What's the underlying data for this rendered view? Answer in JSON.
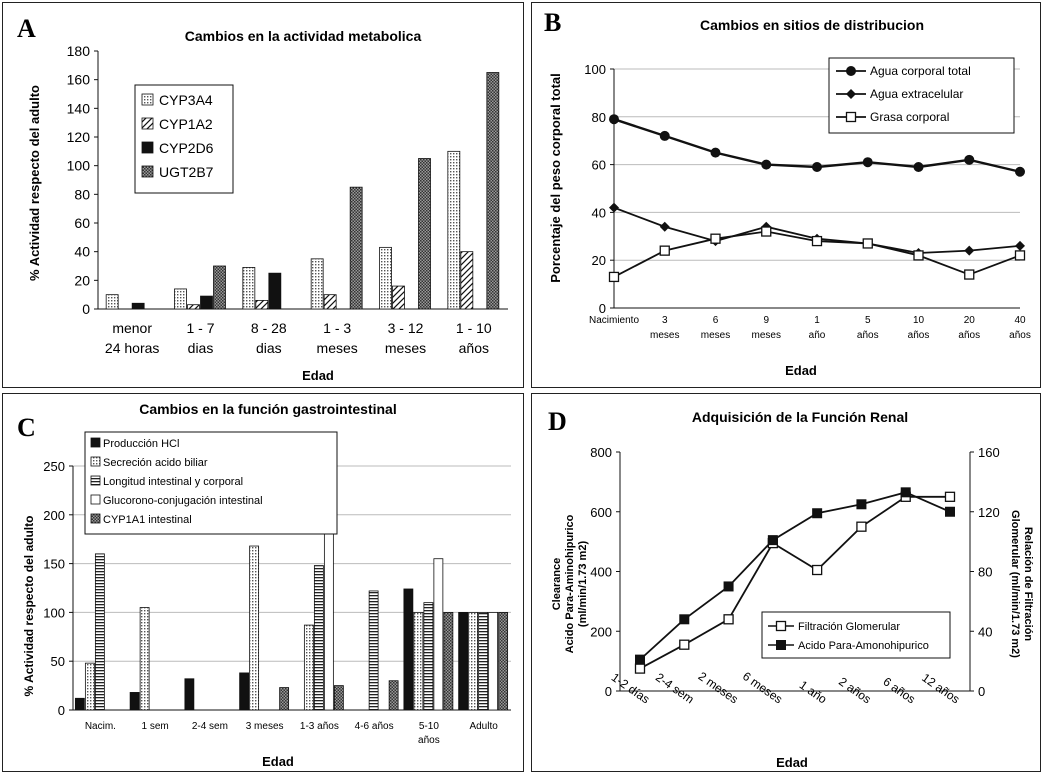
{
  "chart_data": [
    {
      "panel_letter": "A",
      "type": "bar",
      "title": "Cambios en la actividad metabolica",
      "xlabel": "Edad",
      "ylabel": "% Actividad respecto del adulto",
      "ylim": [
        0,
        180
      ],
      "yticks": [
        "0",
        "20",
        "40",
        "60",
        "80",
        "100",
        "120",
        "140",
        "160",
        "180"
      ],
      "categories": [
        [
          "menor",
          "24 horas"
        ],
        [
          "1 - 7",
          "dias"
        ],
        [
          "8 - 28",
          "dias"
        ],
        [
          "1 - 3",
          "meses"
        ],
        [
          "3 - 12",
          "meses"
        ],
        [
          "1 - 10",
          "años"
        ]
      ],
      "series": [
        {
          "name": "CYP3A4",
          "pattern": "dots",
          "values": [
            10,
            14,
            29,
            35,
            43,
            110
          ]
        },
        {
          "name": "CYP1A2",
          "pattern": "diag",
          "values": [
            0,
            3,
            6,
            10,
            16,
            40
          ]
        },
        {
          "name": "CYP2D6",
          "pattern": "solid",
          "values": [
            4,
            9,
            25,
            0,
            0,
            0
          ]
        },
        {
          "name": "UGT2B7",
          "pattern": "dense",
          "values": [
            0,
            30,
            0,
            85,
            105,
            165
          ]
        }
      ],
      "legend": "top-left",
      "grid": false
    },
    {
      "panel_letter": "B",
      "type": "line",
      "title": "Cambios en sitios de distribucion",
      "xlabel": "Edad",
      "ylabel": "Porcentaje del peso corporal total",
      "ylim": [
        0,
        100
      ],
      "yticks": [
        "0",
        "20",
        "40",
        "60",
        "80",
        "100"
      ],
      "categories": [
        [
          "Nacimiento"
        ],
        [
          "3",
          "meses"
        ],
        [
          "6",
          "meses"
        ],
        [
          "9",
          "meses"
        ],
        [
          "1",
          "año"
        ],
        [
          "5",
          "años"
        ],
        [
          "10",
          "años"
        ],
        [
          "20",
          "años"
        ],
        [
          "40",
          "años"
        ]
      ],
      "series": [
        {
          "name": "Agua corporal total",
          "marker": "circle",
          "values": [
            79,
            72,
            65,
            60,
            59,
            61,
            59,
            62,
            57
          ]
        },
        {
          "name": "Agua extracelular",
          "marker": "diamond",
          "values": [
            42,
            34,
            28,
            34,
            29,
            27,
            23,
            24,
            26
          ]
        },
        {
          "name": "Grasa corporal",
          "marker": "square-open",
          "values": [
            13,
            24,
            29,
            32,
            28,
            27,
            22,
            14,
            22
          ]
        }
      ],
      "legend": "top-right",
      "grid": true
    },
    {
      "panel_letter": "C",
      "type": "bar",
      "title": "Cambios en la función gastrointestinal",
      "xlabel": "Edad",
      "ylabel": "% Actividad respecto del adulto",
      "ylim": [
        0,
        250
      ],
      "yticks": [
        "0",
        "50",
        "100",
        "150",
        "200",
        "250"
      ],
      "categories": [
        [
          "Nacim."
        ],
        [
          "1 sem"
        ],
        [
          "2-4 sem"
        ],
        [
          "3 meses"
        ],
        [
          "1-3 años"
        ],
        [
          "4-6 años"
        ],
        [
          "5-10",
          "años"
        ],
        [
          "Adulto"
        ]
      ],
      "series": [
        {
          "name": "Producción HCl",
          "pattern": "solid",
          "values": [
            12,
            18,
            32,
            38,
            0,
            0,
            124,
            100
          ]
        },
        {
          "name": "Secreción acido biliar",
          "pattern": "dots",
          "values": [
            48,
            105,
            0,
            168,
            87,
            0,
            100,
            100
          ]
        },
        {
          "name": "Longitud intestinal y corporal",
          "pattern": "hlines",
          "values": [
            160,
            0,
            0,
            0,
            148,
            122,
            110,
            100
          ]
        },
        {
          "name": "Glucorono-conjugación intestinal",
          "pattern": "open",
          "values": [
            0,
            0,
            0,
            0,
            238,
            0,
            155,
            100
          ]
        },
        {
          "name": "CYP1A1 intestinal",
          "pattern": "dense",
          "values": [
            0,
            0,
            0,
            23,
            25,
            30,
            100,
            100
          ]
        }
      ],
      "legend": "top-left",
      "grid": true
    },
    {
      "panel_letter": "D",
      "type": "line",
      "title": "Adquisición de la Función Renal",
      "xlabel": "Edad",
      "ylabel": "Clearance Acido Para-Aminohipurico (ml/min/1.73 m2)",
      "ylabel_lines": [
        "Clearance",
        "Acido Para-Aminohipurico",
        "(ml/min/1.73 m2)"
      ],
      "y2label": "Relación de Filtración Glomerular (ml/min/1.73 m2)",
      "y2label_lines": [
        "Relación de Filtración",
        "Glomerular (ml/min/1.73 m2)"
      ],
      "ylim": [
        0,
        800
      ],
      "yticks": [
        "0",
        "200",
        "400",
        "600",
        "800"
      ],
      "y2lim": [
        0,
        160
      ],
      "y2ticks": [
        "0",
        "40",
        "80",
        "120",
        "160"
      ],
      "categories": [
        "1-2 días",
        "2-4 sem",
        "2 meses",
        "6 meses",
        "1 año",
        "2 años",
        "6 años",
        "12 años"
      ],
      "series": [
        {
          "name": "Filtración Glomerular",
          "marker": "square-open",
          "axis": "right",
          "values": [
            15,
            31,
            48,
            99,
            81,
            110,
            130,
            130
          ]
        },
        {
          "name": "Acido Para-Amonohipurico",
          "marker": "square-filled",
          "axis": "left",
          "values": [
            105,
            240,
            350,
            505,
            595,
            625,
            665,
            600
          ]
        }
      ],
      "legend": "bottom-right",
      "grid": false
    }
  ]
}
